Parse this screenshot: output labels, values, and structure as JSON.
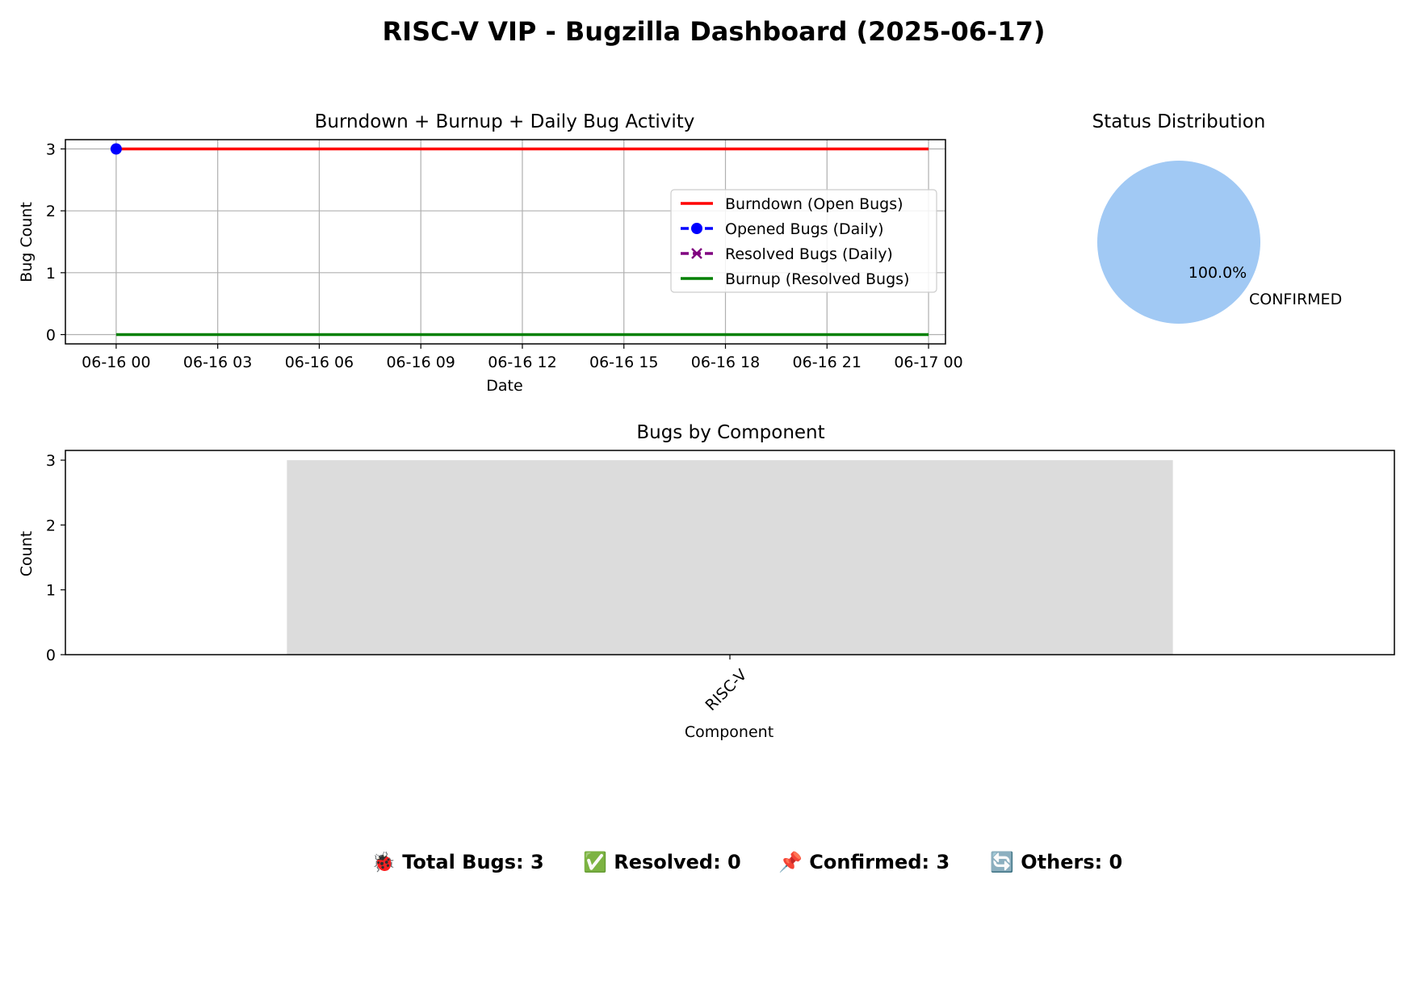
{
  "figure": {
    "title": "RISC-V VIP - Bugzilla Dashboard (2025-06-17)"
  },
  "chart_data": [
    {
      "type": "line",
      "title": "Burndown + Burnup + Daily Bug Activity",
      "xlabel": "Date",
      "ylabel": "Bug Count",
      "xlim": [
        "2025-06-15 22:30",
        "2025-06-17 00:30"
      ],
      "ylim": [
        -0.15,
        3.15
      ],
      "x_ticks": [
        "2025-06-16 00:00",
        "2025-06-16 03:00",
        "2025-06-16 06:00",
        "2025-06-16 09:00",
        "2025-06-16 12:00",
        "2025-06-16 15:00",
        "2025-06-16 18:00",
        "2025-06-16 21:00",
        "2025-06-17 00:00"
      ],
      "x_tick_labels": [
        "06-16 00",
        "06-16 03",
        "06-16 06",
        "06-16 09",
        "06-16 12",
        "06-16 15",
        "06-16 18",
        "06-16 21",
        "06-17 00"
      ],
      "y_ticks": [
        0,
        1,
        2,
        3
      ],
      "grid": true,
      "legend_position": "center-right",
      "series": [
        {
          "name": "Burndown (Open Bugs)",
          "style": "solid",
          "marker": "none",
          "color": "#ff0000",
          "x": [
            "2025-06-16 00:00",
            "2025-06-17 00:00"
          ],
          "y": [
            3,
            3
          ]
        },
        {
          "name": "Opened Bugs (Daily)",
          "style": "dashed",
          "marker": "circle",
          "color": "#0000ff",
          "x": [
            "2025-06-16 00:00"
          ],
          "y": [
            3
          ]
        },
        {
          "name": "Resolved Bugs (Daily)",
          "style": "dashed",
          "marker": "x",
          "color": "#800080",
          "x": [],
          "y": []
        },
        {
          "name": "Burnup (Resolved Bugs)",
          "style": "solid",
          "marker": "none",
          "color": "#008000",
          "x": [
            "2025-06-16 00:00",
            "2025-06-17 00:00"
          ],
          "y": [
            0,
            0
          ]
        }
      ]
    },
    {
      "type": "pie",
      "title": "Status Distribution",
      "slices": [
        {
          "label": "CONFIRMED",
          "value": 100.0,
          "pct_label": "100.0%",
          "color": "#a1c9f4"
        }
      ]
    },
    {
      "type": "bar",
      "title": "Bugs by Component",
      "xlabel": "Component",
      "ylabel": "Count",
      "categories": [
        "RISC-V"
      ],
      "values": [
        3
      ],
      "color": "#dcdcdc",
      "ylim": [
        0,
        3.15
      ],
      "y_ticks": [
        0,
        1,
        2,
        3
      ],
      "x_tick_rotation_deg": 45,
      "grid": false
    }
  ],
  "summary": {
    "total": "🐞 Total Bugs: 3",
    "resolved": "✅ Resolved: 0",
    "confirmed": "📌 Confirmed: 3",
    "others": "🔄 Others: 0"
  }
}
